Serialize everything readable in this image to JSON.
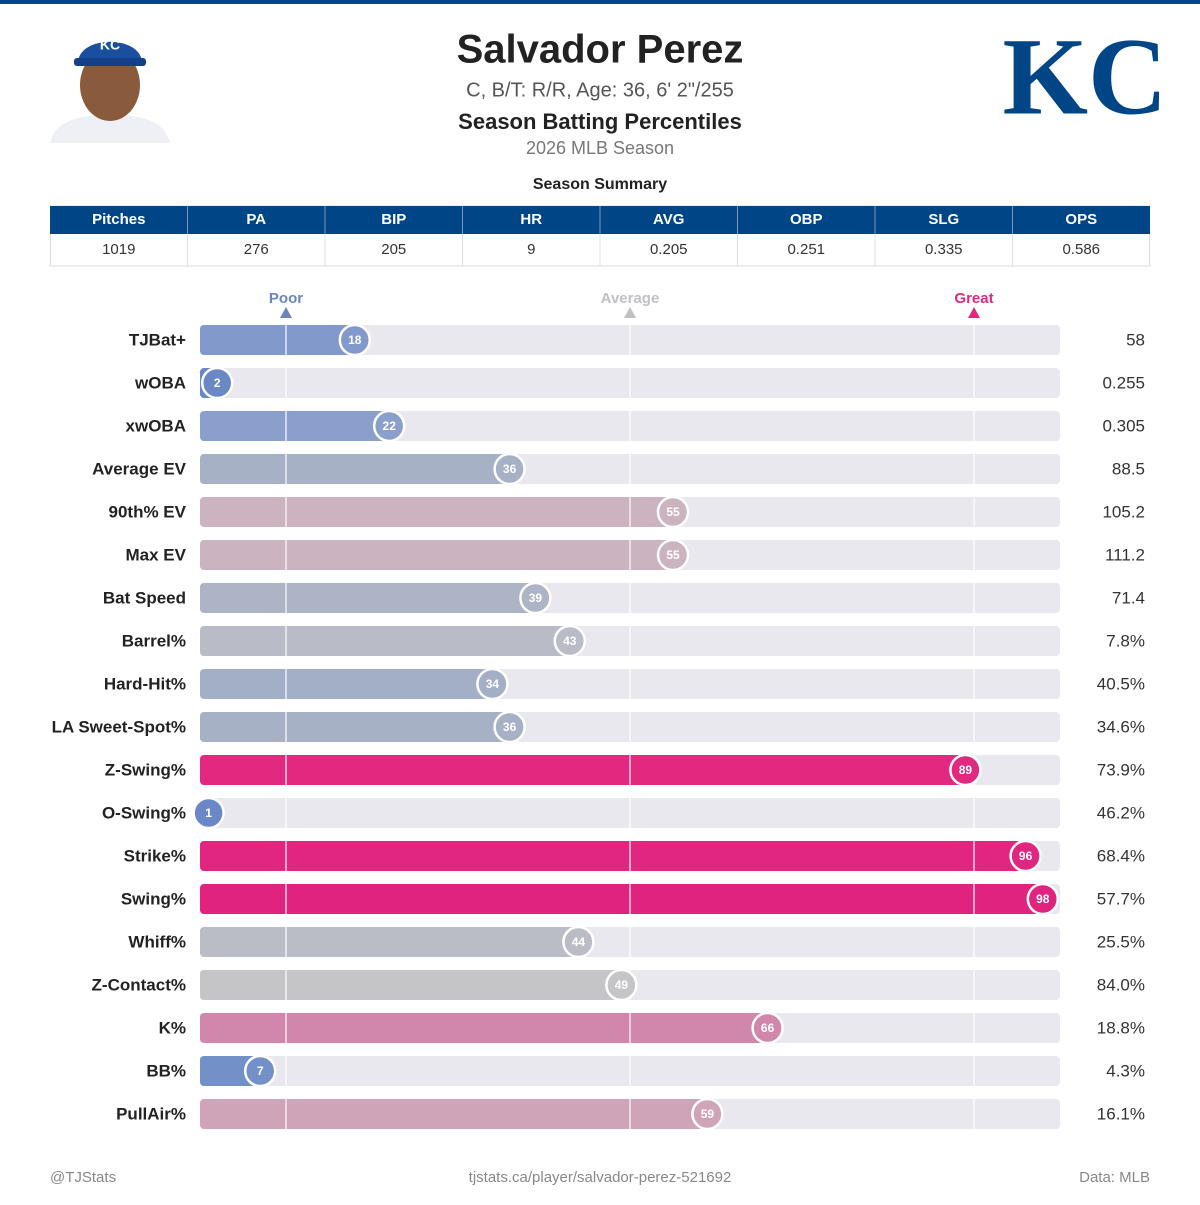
{
  "header": {
    "name": "Salvador Perez",
    "bio": "C, B/T: R/R, Age: 36, 6' 2\"/255",
    "subtitle": "Season Batting Percentiles",
    "season": "2026 MLB Season",
    "logo": "KC"
  },
  "table": {
    "title": "Season Summary",
    "columns": [
      "Pitches",
      "PA",
      "BIP",
      "HR",
      "AVG",
      "OBP",
      "SLG",
      "OPS"
    ],
    "rows": [
      [
        "1019",
        "276",
        "205",
        "9",
        "0.205",
        "0.251",
        "0.335",
        "0.586"
      ]
    ]
  },
  "chart_data": {
    "type": "bar",
    "orientation": "horizontal",
    "categories": [
      "TJBat+",
      "wOBA",
      "xwOBA",
      "Average EV",
      "90th% EV",
      "Max EV",
      "Bat Speed",
      "Barrel%",
      "Hard-Hit%",
      "LA Sweet-Spot%",
      "Z-Swing%",
      "O-Swing%",
      "Strike%",
      "Swing%",
      "Whiff%",
      "Z-Contact%",
      "K%",
      "BB%",
      "PullAir%"
    ],
    "values": [
      18,
      2,
      22,
      36,
      55,
      55,
      39,
      43,
      34,
      36,
      89,
      1,
      96,
      98,
      44,
      49,
      66,
      7,
      59
    ],
    "colors": [
      "#8299cb",
      "#6a88c6",
      "#8a9fcb",
      "#a6b1c6",
      "#cbb3c0",
      "#cbb3c0",
      "#acb4c5",
      "#b9bcc7",
      "#a3afc7",
      "#a6b1c6",
      "#e0297f",
      "#6a88c8",
      "#e0267e",
      "#e0247d",
      "#bbbdc6",
      "#c5c5c8",
      "#d186ab",
      "#7390c8",
      "#cfa4b9"
    ],
    "stats": [
      "58",
      "0.255",
      "0.305",
      "88.5",
      "105.2",
      "111.2",
      "71.4",
      "7.8%",
      "40.5%",
      "34.6%",
      "73.9%",
      "46.2%",
      "68.4%",
      "57.7%",
      "25.5%",
      "84.0%",
      "18.8%",
      "4.3%",
      "16.1%"
    ],
    "xlim": [
      0,
      100
    ],
    "xticks": [
      {
        "value": 10,
        "label": "Poor"
      },
      {
        "value": 50,
        "label": "Average"
      },
      {
        "value": 90,
        "label": "Great"
      }
    ],
    "tick_colors": [
      "#6b84c0",
      "#c0c0c6",
      "#e0297f"
    ],
    "track_color": "#e8e8ee"
  },
  "footer": {
    "left": "@TJStats",
    "center": "tjstats.ca/player/salvador-perez-521692",
    "right": "Data: MLB"
  }
}
